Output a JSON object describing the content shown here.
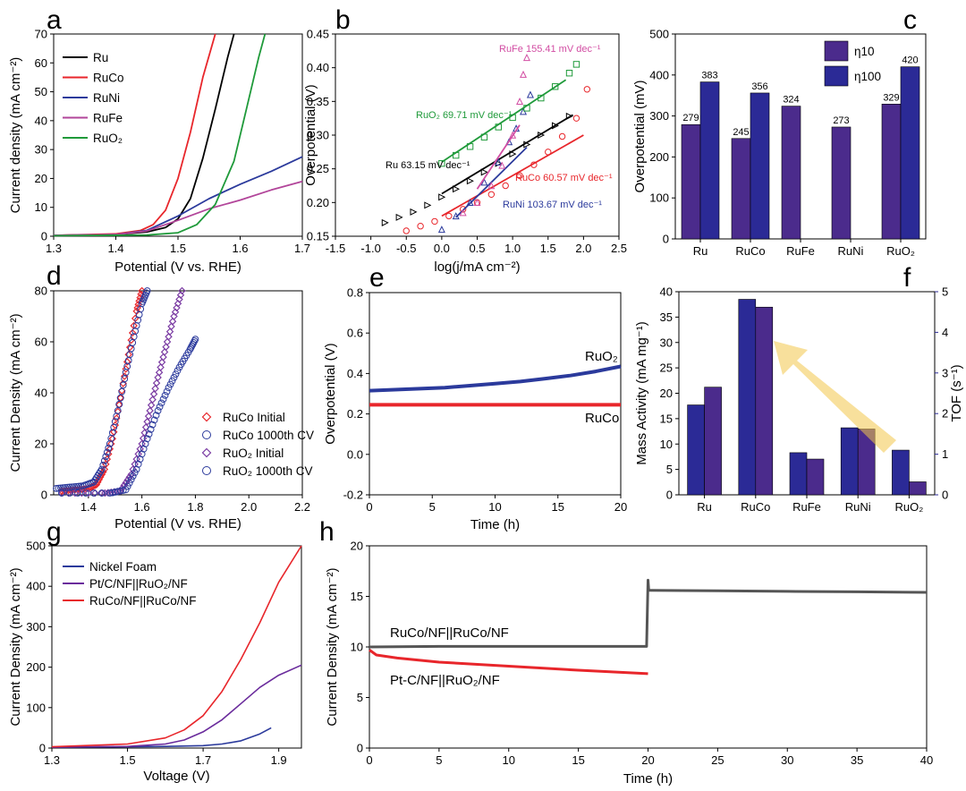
{
  "chart_data": [
    {
      "panel": "a",
      "type": "line",
      "xlabel": "Potential (V vs. RHE)",
      "ylabel": "Current density (mA cm⁻²)",
      "xlim": [
        1.3,
        1.7
      ],
      "ylim": [
        0,
        70
      ],
      "xticks": [
        "1.3",
        "1.4",
        "1.5",
        "1.6",
        "1.7"
      ],
      "yticks": [
        "0",
        "10",
        "20",
        "30",
        "40",
        "50",
        "60",
        "70"
      ],
      "legend": "top-left",
      "series": [
        {
          "name": "Ru",
          "color": "#000000",
          "x": [
            1.3,
            1.4,
            1.45,
            1.48,
            1.5,
            1.52,
            1.54,
            1.56,
            1.58,
            1.59
          ],
          "y": [
            0.3,
            0.6,
            1.5,
            3,
            6,
            13,
            27,
            44,
            62,
            70
          ]
        },
        {
          "name": "RuCo",
          "color": "#e8262b",
          "x": [
            1.3,
            1.4,
            1.44,
            1.46,
            1.48,
            1.5,
            1.52,
            1.54,
            1.56
          ],
          "y": [
            0.3,
            0.8,
            2,
            4,
            9,
            20,
            36,
            55,
            70
          ]
        },
        {
          "name": "RuNi",
          "color": "#2b3a9c",
          "x": [
            1.3,
            1.4,
            1.45,
            1.5,
            1.55,
            1.6,
            1.65,
            1.7
          ],
          "y": [
            0.3,
            0.6,
            2,
            7,
            13,
            18,
            22.5,
            27.5
          ]
        },
        {
          "name": "RuFe",
          "color": "#b2459a",
          "x": [
            1.3,
            1.4,
            1.45,
            1.5,
            1.55,
            1.6,
            1.65,
            1.7
          ],
          "y": [
            0.3,
            0.6,
            1.8,
            5.5,
            9.5,
            12.5,
            16,
            19
          ]
        },
        {
          "name": "RuO₂",
          "color": "#1f9a3a",
          "x": [
            1.3,
            1.45,
            1.5,
            1.53,
            1.56,
            1.59,
            1.61,
            1.63,
            1.64
          ],
          "y": [
            0.2,
            0.4,
            1.2,
            4,
            11,
            26,
            44,
            62,
            70
          ]
        }
      ]
    },
    {
      "panel": "b",
      "type": "scatter",
      "xlabel": "log(j/mA cm⁻²)",
      "ylabel": "Overpotential (V)",
      "xlim": [
        -1.5,
        2.5
      ],
      "ylim": [
        0.15,
        0.45
      ],
      "xticks": [
        "-1.5",
        "-1.0",
        "-0.5",
        "0.0",
        "0.5",
        "1.0",
        "1.5",
        "2.0",
        "2.5"
      ],
      "yticks": [
        "0.15",
        "0.20",
        "0.25",
        "0.30",
        "0.35",
        "0.40",
        "0.45"
      ],
      "series": [
        {
          "name": "Ru",
          "label": "Ru 63.15 mV dec⁻¹",
          "color": "#000000",
          "marker": "triangle-right",
          "x": [
            -0.8,
            -0.6,
            -0.4,
            -0.2,
            0.0,
            0.2,
            0.4,
            0.6,
            0.8,
            1.0,
            1.2,
            1.4,
            1.6,
            1.8
          ],
          "y": [
            0.17,
            0.178,
            0.186,
            0.196,
            0.208,
            0.22,
            0.232,
            0.245,
            0.258,
            0.272,
            0.286,
            0.3,
            0.314,
            0.328
          ],
          "fit": {
            "x": [
              0.0,
              1.85
            ],
            "y": [
              0.213,
              0.33
            ]
          }
        },
        {
          "name": "RuCo",
          "label": "RuCo 60.57 mV dec⁻¹",
          "color": "#e8262b",
          "marker": "circle",
          "x": [
            -0.5,
            -0.3,
            -0.1,
            0.1,
            0.3,
            0.5,
            0.7,
            0.9,
            1.1,
            1.3,
            1.5,
            1.7,
            1.9,
            2.05
          ],
          "y": [
            0.158,
            0.165,
            0.172,
            0.18,
            0.19,
            0.2,
            0.212,
            0.225,
            0.24,
            0.256,
            0.275,
            0.298,
            0.325,
            0.368
          ],
          "fit": {
            "x": [
              0.0,
              2.0
            ],
            "y": [
              0.18,
              0.3
            ]
          }
        },
        {
          "name": "RuNi",
          "label": "RuNi 103.67 mV dec⁻¹",
          "color": "#2b3a9c",
          "marker": "triangle-up",
          "x": [
            0.0,
            0.2,
            0.4,
            0.6,
            0.8,
            0.95,
            1.05,
            1.15,
            1.25
          ],
          "y": [
            0.16,
            0.18,
            0.2,
            0.23,
            0.26,
            0.29,
            0.31,
            0.335,
            0.36
          ],
          "fit": {
            "x": [
              0.2,
              1.2
            ],
            "y": [
              0.178,
              0.282
            ]
          }
        },
        {
          "name": "RuFe",
          "label": "RuFe 155.41 mV dec⁻¹",
          "color": "#d24da3",
          "marker": "triangle-up",
          "x": [
            0.3,
            0.5,
            0.7,
            0.85,
            1.0,
            1.1,
            1.15,
            1.2
          ],
          "y": [
            0.185,
            0.2,
            0.225,
            0.255,
            0.3,
            0.35,
            0.39,
            0.415
          ],
          "fit": {
            "x": [
              0.5,
              1.1
            ],
            "y": [
              0.22,
              0.315
            ]
          }
        },
        {
          "name": "RuO₂",
          "label": "RuO₂ 69.71 mV dec⁻¹",
          "color": "#1f9a3a",
          "marker": "square",
          "x": [
            0.0,
            0.2,
            0.4,
            0.6,
            0.8,
            1.0,
            1.2,
            1.4,
            1.6,
            1.8,
            1.9
          ],
          "y": [
            0.258,
            0.27,
            0.283,
            0.297,
            0.312,
            0.326,
            0.34,
            0.355,
            0.372,
            0.392,
            0.405
          ],
          "fit": {
            "x": [
              0.0,
              1.75
            ],
            "y": [
              0.26,
              0.382
            ]
          }
        }
      ]
    },
    {
      "panel": "c",
      "type": "bar",
      "ylabel": "Overpotential (mV)",
      "ylim": [
        0,
        500
      ],
      "yticks": [
        "0",
        "100",
        "200",
        "300",
        "400",
        "500"
      ],
      "categories": [
        "Ru",
        "RuCo",
        "RuFe",
        "RuNi",
        "RuO₂"
      ],
      "legend": "top-right",
      "series": [
        {
          "name": "η10",
          "color": "#4b2b8c",
          "values": [
            279,
            245,
            324,
            273,
            329
          ],
          "labels": [
            "279",
            "245",
            "324",
            "273",
            "329"
          ]
        },
        {
          "name": "η100",
          "color": "#2b2a96",
          "values": [
            383,
            356,
            null,
            null,
            420
          ],
          "labels": [
            "383",
            "356",
            "",
            "",
            "420"
          ]
        }
      ]
    },
    {
      "panel": "d",
      "type": "scatter",
      "xlabel": "Potential (V vs. RHE)",
      "ylabel": "Current Density (mA cm⁻²)",
      "xlim": [
        1.27,
        2.2
      ],
      "ylim": [
        0,
        80
      ],
      "xticks": [
        "1.4",
        "1.6",
        "1.8",
        "2.0",
        "2.2"
      ],
      "yticks": [
        "0",
        "20",
        "40",
        "60",
        "80"
      ],
      "legend": "bottom-right",
      "series": [
        {
          "name": "RuCo Initial",
          "color": "#e8262b",
          "marker": "diamond",
          "x": [
            1.3,
            1.35,
            1.4,
            1.43,
            1.46,
            1.49,
            1.52,
            1.55,
            1.58,
            1.6
          ],
          "y": [
            1.5,
            2,
            2.5,
            4,
            10,
            22,
            38,
            55,
            72,
            80
          ]
        },
        {
          "name": "RuCo 1000th CV",
          "color": "#2b3a9c",
          "marker": "circle",
          "x": [
            1.28,
            1.33,
            1.38,
            1.42,
            1.45,
            1.48,
            1.51,
            1.54,
            1.57,
            1.6,
            1.62
          ],
          "y": [
            2.5,
            3,
            3.5,
            5,
            10,
            20,
            33,
            48,
            62,
            75,
            80
          ]
        },
        {
          "name": "RuO₂ Initial",
          "color": "#7b3ca3",
          "marker": "diamond",
          "x": [
            1.3,
            1.45,
            1.52,
            1.56,
            1.6,
            1.63,
            1.66,
            1.69,
            1.72,
            1.75
          ],
          "y": [
            0.2,
            0.5,
            1.5,
            8,
            20,
            33,
            46,
            58,
            70,
            80
          ]
        },
        {
          "name": "RuO₂ 1000th CV",
          "color": "#2b3a9c",
          "marker": "circle",
          "x": [
            1.3,
            1.48,
            1.54,
            1.58,
            1.62,
            1.66,
            1.7,
            1.74,
            1.78,
            1.8
          ],
          "y": [
            0.3,
            0.6,
            2,
            10,
            22,
            33,
            42,
            50,
            57,
            61
          ]
        }
      ]
    },
    {
      "panel": "e",
      "type": "line",
      "xlabel": "Time (h)",
      "ylabel": "Overpotential (V)",
      "xlim": [
        0,
        20
      ],
      "ylim": [
        -0.2,
        0.8
      ],
      "xticks": [
        "0",
        "5",
        "10",
        "15",
        "20"
      ],
      "yticks": [
        "-0.2",
        "0.0",
        "0.2",
        "0.4",
        "0.6",
        "0.8"
      ],
      "series": [
        {
          "name": "RuO₂",
          "label": "RuO₂",
          "color": "#2b3a9c",
          "x": [
            0,
            2,
            4,
            6,
            8,
            10,
            12,
            14,
            16,
            18,
            20
          ],
          "y": [
            0.315,
            0.32,
            0.325,
            0.33,
            0.34,
            0.35,
            0.36,
            0.375,
            0.39,
            0.41,
            0.435
          ]
        },
        {
          "name": "RuCo",
          "label": "RuCo",
          "color": "#e8262b",
          "x": [
            0,
            20
          ],
          "y": [
            0.245,
            0.245
          ]
        }
      ]
    },
    {
      "panel": "f",
      "type": "bar",
      "ylabel": "Mass Activity (mA mg⁻¹)",
      "y2label": "TOF (s⁻¹)",
      "ylim": [
        0,
        40
      ],
      "y2lim": [
        0,
        5
      ],
      "yticks": [
        "0",
        "5",
        "10",
        "15",
        "20",
        "25",
        "30",
        "35",
        "40"
      ],
      "y2ticks": [
        "0",
        "1",
        "2",
        "3",
        "4",
        "5"
      ],
      "categories": [
        "Ru",
        "RuCo",
        "RuFe",
        "RuNi",
        "RuO₂"
      ],
      "series": [
        {
          "name": "Mass Activity",
          "axis": "left",
          "color": "#2b2a96",
          "values": [
            17.7,
            38.5,
            8.3,
            13.2,
            8.8
          ]
        },
        {
          "name": "TOF",
          "axis": "right",
          "color": "#4b2b8c",
          "values": [
            2.65,
            4.62,
            0.88,
            1.62,
            0.32
          ]
        }
      ]
    },
    {
      "panel": "g",
      "type": "line",
      "xlabel": "Voltage (V)",
      "ylabel": "Current Density (mA cm⁻²)",
      "xlim": [
        1.3,
        1.96
      ],
      "ylim": [
        0,
        500
      ],
      "xticks": [
        "1.3",
        "1.5",
        "1.7",
        "1.9"
      ],
      "yticks": [
        "0",
        "100",
        "200",
        "300",
        "400",
        "500"
      ],
      "legend": "top-left",
      "series": [
        {
          "name": "Nickel Foam",
          "color": "#2b3a9c",
          "x": [
            1.3,
            1.5,
            1.6,
            1.7,
            1.75,
            1.8,
            1.85,
            1.88
          ],
          "y": [
            2,
            3,
            4,
            6,
            10,
            18,
            35,
            50
          ]
        },
        {
          "name": "Pt/C/NF||RuO₂/NF",
          "color": "#6a2b9c",
          "x": [
            1.3,
            1.5,
            1.6,
            1.65,
            1.7,
            1.75,
            1.8,
            1.85,
            1.9,
            1.96
          ],
          "y": [
            2,
            4,
            10,
            20,
            40,
            70,
            110,
            150,
            180,
            205
          ]
        },
        {
          "name": "RuCo/NF||RuCo/NF",
          "color": "#e8262b",
          "x": [
            1.3,
            1.5,
            1.6,
            1.65,
            1.7,
            1.75,
            1.8,
            1.85,
            1.9,
            1.96
          ],
          "y": [
            3,
            10,
            25,
            45,
            80,
            140,
            220,
            310,
            410,
            500
          ]
        }
      ]
    },
    {
      "panel": "h",
      "type": "line",
      "xlabel": "Time (h)",
      "ylabel": "Current Density (mA cm⁻²)",
      "xlim": [
        0,
        40
      ],
      "ylim": [
        0,
        20
      ],
      "xticks": [
        "0",
        "5",
        "10",
        "15",
        "20",
        "25",
        "30",
        "35",
        "40"
      ],
      "yticks": [
        "0",
        "5",
        "10",
        "15",
        "20"
      ],
      "series": [
        {
          "name": "RuCo/NF||RuCo/NF",
          "label": "RuCo/NF||RuCo/NF",
          "color": "#555555",
          "x": [
            0,
            5,
            10,
            15,
            19.9,
            20.0,
            20.05,
            20.2,
            25,
            30,
            35,
            40
          ],
          "y": [
            10.0,
            10.05,
            10.05,
            10.05,
            10.05,
            16.6,
            15.6,
            15.6,
            15.55,
            15.5,
            15.45,
            15.4
          ]
        },
        {
          "name": "Pt-C/NF||RuO₂/NF",
          "label": "Pt-C/NF||RuO₂/NF",
          "color": "#e8262b",
          "x": [
            0,
            0.5,
            2,
            5,
            10,
            15,
            20
          ],
          "y": [
            9.7,
            9.2,
            8.9,
            8.5,
            8.1,
            7.7,
            7.35
          ]
        }
      ]
    }
  ],
  "panel_letters": [
    "a",
    "b",
    "c",
    "d",
    "e",
    "f",
    "g",
    "h"
  ]
}
